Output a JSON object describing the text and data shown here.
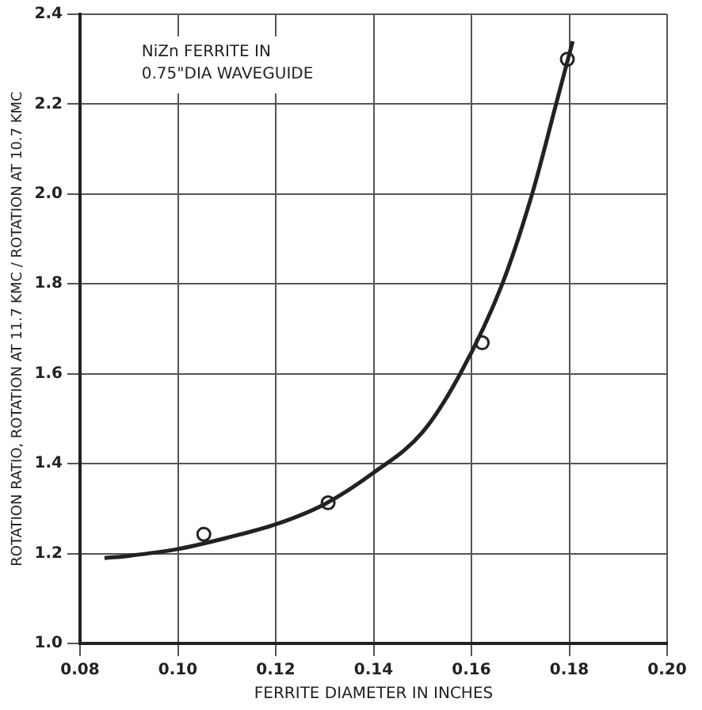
{
  "chart_data": {
    "type": "scatter",
    "xlabel": "FERRITE DIAMETER IN INCHES",
    "ylabel": "ROTATION RATIO, ROTATION AT 11.7 KMC / ROTATION AT 10.7 KMC",
    "annotations": [
      "NiZn FERRITE IN",
      "0.75\"DIA WAVEGUIDE"
    ],
    "series": [
      {
        "type": "line",
        "color": "#222222",
        "marker": "none",
        "x": [
          0.085,
          0.09,
          0.1,
          0.11,
          0.12,
          0.13,
          0.14,
          0.15,
          0.1577,
          0.1663,
          0.1724,
          0.1773,
          0.1807
        ],
        "values": [
          1.19,
          1.195,
          1.21,
          1.235,
          1.265,
          1.31,
          1.38,
          1.47,
          1.6,
          1.8,
          2.0,
          2.2,
          2.34
        ]
      },
      {
        "type": "scatter",
        "color": "#222222",
        "marker": "circle",
        "x": [
          0.1053,
          0.1307,
          0.1622,
          0.1796
        ],
        "values": [
          1.243,
          1.313,
          1.669,
          2.3
        ]
      }
    ],
    "xlim": [
      0.08,
      0.2
    ],
    "xticks": [
      {
        "value": 0.08,
        "label": "0.08"
      },
      {
        "value": 0.1,
        "label": "0.10"
      },
      {
        "value": 0.12,
        "label": "0.12"
      },
      {
        "value": 0.14,
        "label": "0.14"
      },
      {
        "value": 0.16,
        "label": "0.16"
      },
      {
        "value": 0.18,
        "label": "0.18"
      },
      {
        "value": 0.2,
        "label": "0.20"
      }
    ],
    "ylim": [
      1.0,
      2.4
    ],
    "yticks": [
      {
        "value": 1,
        "label": "1.0"
      },
      {
        "value": 1.2,
        "label": "1.2"
      },
      {
        "value": 1.4,
        "label": "1.4"
      },
      {
        "value": 1.6,
        "label": "1.6"
      },
      {
        "value": 1.8,
        "label": "1.8"
      },
      {
        "value": 2,
        "label": "2.0"
      },
      {
        "value": 2.2,
        "label": "2.2"
      },
      {
        "value": 2.4,
        "label": "2.4"
      }
    ],
    "grid": true,
    "legend": false
  }
}
